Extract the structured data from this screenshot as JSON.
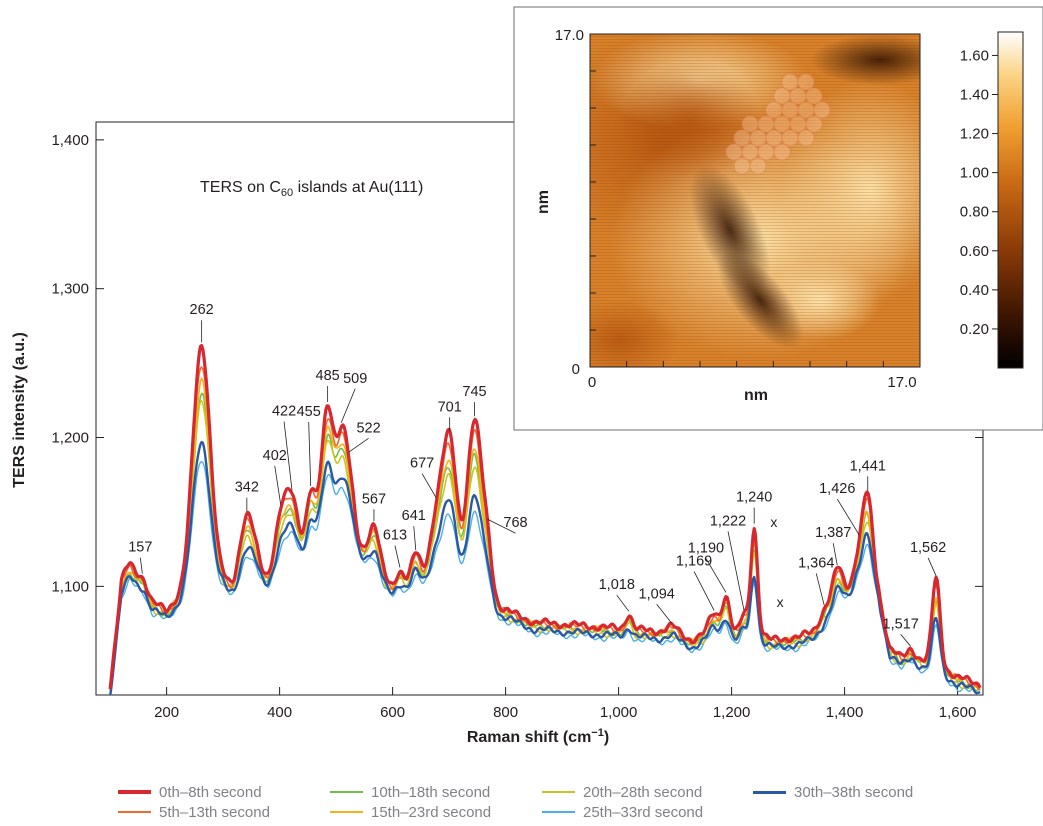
{
  "chart_data": {
    "type": "line",
    "annotation_title": {
      "main": "TERS on C",
      "sub": "60",
      "rest": " islands at Au(111)"
    },
    "xlabel": {
      "main": "Raman shift (cm",
      "sup": "−1",
      "end": ")"
    },
    "ylabel": "TERS intensity (a.u.)",
    "xlim": [
      75,
      1645
    ],
    "ylim": [
      1027,
      1412
    ],
    "x_ticks": [
      {
        "value": 200,
        "label": "200"
      },
      {
        "value": 400,
        "label": "400"
      },
      {
        "value": 600,
        "label": "600"
      },
      {
        "value": 800,
        "label": "800"
      },
      {
        "value": 1000,
        "label": "1,000"
      },
      {
        "value": 1200,
        "label": "1,200"
      },
      {
        "value": 1400,
        "label": "1,400"
      },
      {
        "value": 1600,
        "label": "1,600"
      }
    ],
    "y_ticks": [
      {
        "value": 1100,
        "label": "1,100"
      },
      {
        "value": 1200,
        "label": "1,200"
      },
      {
        "value": 1300,
        "label": "1,300"
      },
      {
        "value": 1400,
        "label": "1,400"
      }
    ],
    "baseline_anchors": [
      [
        100,
        1028
      ],
      [
        120,
        1090
      ],
      [
        135,
        1100
      ],
      [
        160,
        1095
      ],
      [
        175,
        1085
      ],
      [
        200,
        1080
      ],
      [
        225,
        1090
      ],
      [
        245,
        1100
      ],
      [
        300,
        1100
      ],
      [
        320,
        1092
      ],
      [
        360,
        1105
      ],
      [
        380,
        1100
      ],
      [
        470,
        1125
      ],
      [
        530,
        1130
      ],
      [
        560,
        1108
      ],
      [
        600,
        1095
      ],
      [
        640,
        1100
      ],
      [
        800,
        1080
      ],
      [
        850,
        1072
      ],
      [
        1100,
        1065
      ],
      [
        1130,
        1060
      ],
      [
        1160,
        1066
      ],
      [
        1200,
        1064
      ],
      [
        1240,
        1066
      ],
      [
        1270,
        1060
      ],
      [
        1320,
        1062
      ],
      [
        1360,
        1068
      ],
      [
        1400,
        1090
      ],
      [
        1420,
        1100
      ],
      [
        1460,
        1090
      ],
      [
        1480,
        1055
      ],
      [
        1500,
        1048
      ],
      [
        1520,
        1050
      ],
      [
        1580,
        1040
      ],
      [
        1600,
        1035
      ],
      [
        1640,
        1030
      ]
    ],
    "series": [
      {
        "name": "0th–8th second",
        "color": "#d7282f",
        "width": 3.2,
        "scale": 1.0,
        "offset": 4
      },
      {
        "name": "5th–13th second",
        "color": "#ef6a2c",
        "width": 1.6,
        "scale": 0.93,
        "offset": 3
      },
      {
        "name": "10th–18th second",
        "color": "#6fbf4a",
        "width": 1.6,
        "scale": 0.82,
        "offset": 1
      },
      {
        "name": "15th–23rd second",
        "color": "#f6b21a",
        "width": 1.6,
        "scale": 0.86,
        "offset": 2
      },
      {
        "name": "20th–28th second",
        "color": "#c9c523",
        "width": 1.6,
        "scale": 0.78,
        "offset": 0
      },
      {
        "name": "25th–33rd second",
        "color": "#4bb0e3",
        "width": 1.4,
        "scale": 0.55,
        "offset": -3
      },
      {
        "name": "30th–38th second",
        "color": "#2b58a6",
        "width": 2.4,
        "scale": 0.62,
        "offset": -1
      }
    ],
    "peaks": [
      {
        "x": 130,
        "h": 12,
        "w": 14
      },
      {
        "x": 157,
        "h": 5,
        "w": 8
      },
      {
        "x": 262,
        "h": 158,
        "w": 15
      },
      {
        "x": 342,
        "h": 45,
        "w": 13
      },
      {
        "x": 402,
        "h": 35,
        "w": 11
      },
      {
        "x": 422,
        "h": 40,
        "w": 11
      },
      {
        "x": 455,
        "h": 38,
        "w": 8
      },
      {
        "x": 485,
        "h": 90,
        "w": 11
      },
      {
        "x": 509,
        "h": 55,
        "w": 9
      },
      {
        "x": 522,
        "h": 35,
        "w": 9
      },
      {
        "x": 567,
        "h": 32,
        "w": 10
      },
      {
        "x": 613,
        "h": 10,
        "w": 7
      },
      {
        "x": 641,
        "h": 18,
        "w": 8
      },
      {
        "x": 677,
        "h": 40,
        "w": 12
      },
      {
        "x": 701,
        "h": 100,
        "w": 13
      },
      {
        "x": 745,
        "h": 120,
        "w": 13
      },
      {
        "x": 768,
        "h": 30,
        "w": 9
      },
      {
        "x": 1018,
        "h": 10,
        "w": 6
      },
      {
        "x": 1094,
        "h": 4,
        "w": 10
      },
      {
        "x": 1169,
        "h": 12,
        "w": 8
      },
      {
        "x": 1190,
        "h": 25,
        "w": 7
      },
      {
        "x": 1222,
        "h": 12,
        "w": 6
      },
      {
        "x": 1240,
        "h": 70,
        "w": 6
      },
      {
        "x": 1364,
        "h": 10,
        "w": 9
      },
      {
        "x": 1387,
        "h": 25,
        "w": 9
      },
      {
        "x": 1426,
        "h": 15,
        "w": 9
      },
      {
        "x": 1441,
        "h": 60,
        "w": 9
      },
      {
        "x": 1517,
        "h": 4,
        "w": 6
      },
      {
        "x": 1562,
        "h": 58,
        "w": 7
      }
    ],
    "peak_labels": [
      {
        "text": "157",
        "x": 157
      },
      {
        "text": "262",
        "x": 262
      },
      {
        "text": "342",
        "x": 342
      },
      {
        "text": "402",
        "x": 402
      },
      {
        "text": "422",
        "x": 422
      },
      {
        "text": "455",
        "x": 455
      },
      {
        "text": "485",
        "x": 485
      },
      {
        "text": "509",
        "x": 509
      },
      {
        "text": "522",
        "x": 522
      },
      {
        "text": "567",
        "x": 567
      },
      {
        "text": "613",
        "x": 613
      },
      {
        "text": "641",
        "x": 641
      },
      {
        "text": "677",
        "x": 677
      },
      {
        "text": "701",
        "x": 701
      },
      {
        "text": "745",
        "x": 745
      },
      {
        "text": "768",
        "x": 768
      },
      {
        "text": "1,018",
        "x": 1018
      },
      {
        "text": "1,094",
        "x": 1094
      },
      {
        "text": "1,169",
        "x": 1169
      },
      {
        "text": "1,190",
        "x": 1190
      },
      {
        "text": "1,222",
        "x": 1222
      },
      {
        "text": "1,240",
        "x": 1240
      },
      {
        "text": "1,364",
        "x": 1364
      },
      {
        "text": "1,387",
        "x": 1387
      },
      {
        "text": "1,426",
        "x": 1426
      },
      {
        "text": "1,441",
        "x": 1441
      },
      {
        "text": "1,517",
        "x": 1517
      },
      {
        "text": "1,562",
        "x": 1562
      }
    ],
    "x_marks": [
      {
        "text": "x",
        "x": 1258
      },
      {
        "text": "x",
        "x": 1262
      }
    ]
  },
  "inset": {
    "y_top_label": "17.0",
    "origin_label": "0",
    "x_left_label": "0",
    "x_right_label": "17.0",
    "xlabel": "nm",
    "ylabel": "nm",
    "colorbar_ticks": [
      "1.60",
      "1.40",
      "1.20",
      "1.00",
      "0.80",
      "0.60",
      "0.40",
      "0.20"
    ],
    "colorbar_values": [
      1.6,
      1.4,
      1.2,
      1.0,
      0.8,
      0.6,
      0.4,
      0.2
    ],
    "colorbar_range": [
      0,
      1.72
    ],
    "colors": {
      "dark": "#1a0a00",
      "mid": "#b5530e",
      "bright": "#f3a43a",
      "light": "#ffe9b8",
      "white": "#ffffff"
    }
  }
}
